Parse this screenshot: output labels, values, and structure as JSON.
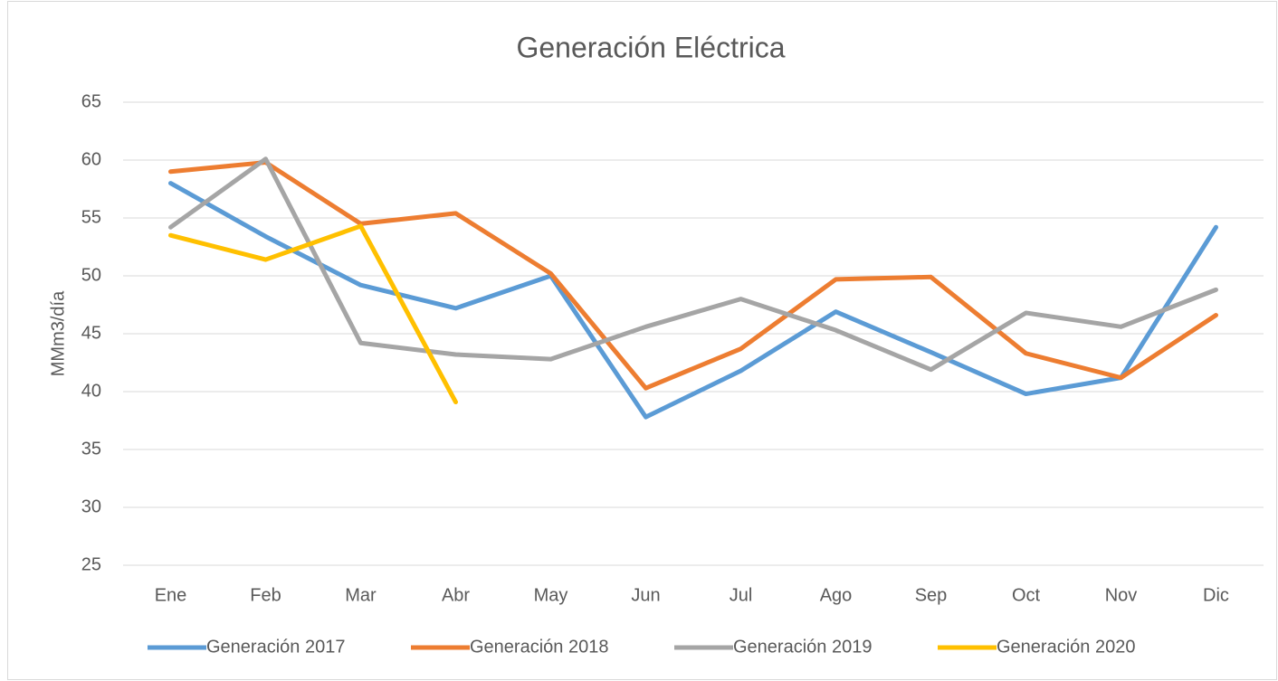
{
  "chart_data": {
    "type": "line",
    "title": "Generación Eléctrica",
    "y_label": "MMm3/día",
    "categories": [
      "Ene",
      "Feb",
      "Mar",
      "Abr",
      "May",
      "Jun",
      "Jul",
      "Ago",
      "Sep",
      "Oct",
      "Nov",
      "Dic"
    ],
    "series": [
      {
        "name": "Generación 2017",
        "color": "#5b9bd5",
        "values": [
          58,
          53.4,
          49.2,
          47.2,
          50,
          37.8,
          41.8,
          46.9,
          43.4,
          39.8,
          41.2,
          54.2
        ]
      },
      {
        "name": "Generación 2018",
        "color": "#ed7d31",
        "values": [
          59,
          59.8,
          54.5,
          55.4,
          50.2,
          40.3,
          43.7,
          49.7,
          49.9,
          43.3,
          41.2,
          46.6
        ]
      },
      {
        "name": "Generación 2019",
        "color": "#a5a5a5",
        "values": [
          54.2,
          60.1,
          44.2,
          43.2,
          42.8,
          45.6,
          48,
          45.3,
          41.9,
          46.8,
          45.6,
          48.8
        ]
      },
      {
        "name": "Generación 2020",
        "color": "#ffc000",
        "values": [
          53.5,
          51.4,
          54.3,
          39.1,
          null,
          null,
          null,
          null,
          null,
          null,
          null,
          null
        ]
      }
    ],
    "ylim": [
      25,
      65
    ],
    "yticks": [
      25,
      30,
      35,
      40,
      45,
      50,
      55,
      60,
      65
    ],
    "grid": true,
    "legend": "bottom"
  }
}
